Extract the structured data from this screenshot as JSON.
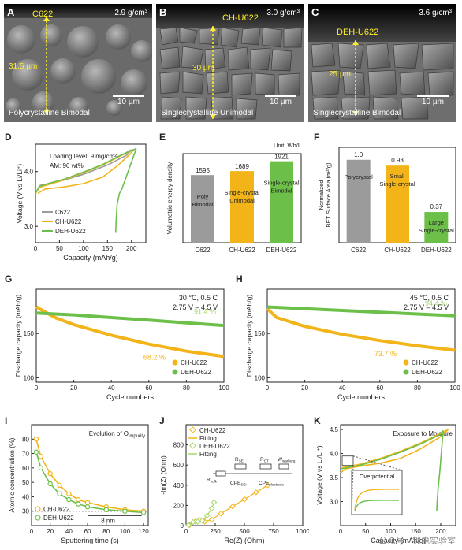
{
  "panels": {
    "A": {
      "letter": "A",
      "density": "2.9 g/cm³",
      "name": "C622",
      "thickness": "31.5 µm",
      "scale": "10 µm",
      "caption": "Polycrystalline Bimodal"
    },
    "B": {
      "letter": "B",
      "density": "3.0 g/cm³",
      "name": "CH-U622",
      "thickness": "30 µm",
      "scale": "10 µm",
      "caption": "Singlecrystalline Unimodal"
    },
    "C": {
      "letter": "C",
      "density": "3.6 g/cm³",
      "name": "DEH-U622",
      "thickness": "25 µm",
      "scale": "10 µm",
      "caption": "Singlecrystalline Bimodal"
    }
  },
  "colors": {
    "c622": "#9b9b9b",
    "ch": "#f2b419",
    "deh": "#6cc04a",
    "deh_light": "#a6d96a"
  },
  "chart_data": [
    {
      "id": "D",
      "type": "line",
      "letter": "D",
      "xlabel": "Capacity (mAh/g)",
      "ylabel": "Voltage (V vs Li/Li⁺)",
      "xlim": [
        0,
        230
      ],
      "ylim": [
        2.7,
        4.5
      ],
      "xticks": [
        0,
        50,
        100,
        150,
        200
      ],
      "yticks": [
        3.0,
        4.0
      ],
      "annotations": [
        "Loading level: 9 mg/cm²",
        "AM: 96 wt%"
      ],
      "legend": [
        "C622",
        "CH-U622",
        "DEH-U622"
      ],
      "series": [
        {
          "name": "C622",
          "charge_x": [
            0,
            8,
            30,
            60,
            100,
            140,
            180,
            200
          ],
          "charge_y": [
            3.6,
            3.72,
            3.78,
            3.85,
            3.98,
            4.12,
            4.3,
            4.4
          ],
          "discharge_x": [
            200,
            190,
            150,
            100,
            50,
            10,
            0
          ],
          "discharge_y": [
            4.4,
            4.3,
            4.12,
            3.95,
            3.82,
            3.75,
            3.6
          ]
        },
        {
          "name": "CH-U622",
          "charge_x": [
            0,
            8,
            30,
            60,
            100,
            140,
            180,
            205
          ],
          "charge_y": [
            3.6,
            3.71,
            3.77,
            3.85,
            3.98,
            4.12,
            4.3,
            4.4
          ],
          "discharge_x": [
            205,
            195,
            170,
            140,
            100,
            60,
            20,
            5
          ],
          "discharge_y": [
            4.4,
            4.3,
            4.1,
            3.9,
            3.78,
            3.72,
            3.68,
            3.6
          ]
        },
        {
          "name": "DEH-U622",
          "charge_x": [
            0,
            8,
            30,
            60,
            100,
            140,
            180,
            210
          ],
          "charge_y": [
            3.6,
            3.73,
            3.79,
            3.86,
            3.99,
            4.13,
            4.31,
            4.42
          ],
          "discharge_x": [
            210,
            180,
            175,
            170,
            168,
            167
          ],
          "discharge_y": [
            4.42,
            3.68,
            3.6,
            3.4,
            3.1,
            2.88
          ]
        }
      ]
    },
    {
      "id": "E",
      "type": "bar",
      "letter": "E",
      "ylabel": "Volumetric energy density",
      "unit": "Unit: Wh/L",
      "categories": [
        "C622",
        "CH-U622",
        "DEH-U622"
      ],
      "values": [
        1595,
        1689,
        1921
      ],
      "value_labels": [
        "1595",
        "1689",
        "1921"
      ],
      "bar_labels": [
        [
          "Poly",
          "Bimodal"
        ],
        [
          "Single-crystal",
          "Unimodal"
        ],
        [
          "Single-crystal",
          "Bimodal"
        ]
      ],
      "ylim": [
        0,
        2100
      ]
    },
    {
      "id": "F",
      "type": "bar",
      "letter": "F",
      "ylabel": "Normalized BET Surface Area (m²/g)",
      "categories": [
        "C622",
        "CH-U622",
        "DEH-U622"
      ],
      "values": [
        1.0,
        0.93,
        0.37
      ],
      "value_labels": [
        "1.0",
        "0.93",
        "0.37"
      ],
      "bar_labels": [
        [
          "Polycrystal"
        ],
        [
          "Small",
          "Single-crystal"
        ],
        [
          "Large",
          "Single-crystal"
        ]
      ],
      "ylim": [
        0,
        1.15
      ]
    },
    {
      "id": "G",
      "type": "line",
      "letter": "G",
      "condition": [
        "30 °C, 0.5 C",
        "2.75 V – 4.5 V"
      ],
      "xlabel": "Cycle numbers",
      "ylabel": "Discharge capacity (mAh/g)",
      "xlim": [
        0,
        100
      ],
      "ylim": [
        95,
        200
      ],
      "xticks": [
        0,
        20,
        40,
        60,
        80,
        100
      ],
      "yticks": [
        100,
        150
      ],
      "retention": [
        "91.4 %",
        "68.2 %"
      ],
      "legend": [
        "CH-U622",
        "DEH-U622"
      ],
      "series": [
        {
          "name": "CH-U622",
          "x": [
            0,
            10,
            20,
            40,
            60,
            80,
            100
          ],
          "y": [
            180,
            168,
            160,
            148,
            138,
            130,
            124
          ]
        },
        {
          "name": "DEH-U622",
          "x": [
            0,
            10,
            20,
            40,
            60,
            80,
            100
          ],
          "y": [
            173,
            172,
            171,
            168,
            165,
            162,
            159
          ]
        }
      ]
    },
    {
      "id": "H",
      "type": "line",
      "letter": "H",
      "condition": [
        "45 °C, 0.5 C",
        "2.75 V – 4.5 V"
      ],
      "xlabel": "Cycle numbers",
      "ylabel": "Discharge capacity (mAh/g)",
      "xlim": [
        0,
        100
      ],
      "ylim": [
        95,
        200
      ],
      "xticks": [
        0,
        20,
        40,
        60,
        80,
        100
      ],
      "yticks": [
        100,
        150
      ],
      "retention": [
        "94.4 %",
        "73.7 %"
      ],
      "legend": [
        "CH-U622",
        "DEH-U622"
      ],
      "series": [
        {
          "name": "CH-U622",
          "x": [
            0,
            5,
            20,
            40,
            60,
            80,
            100
          ],
          "y": [
            178,
            168,
            158,
            149,
            142,
            136,
            131
          ]
        },
        {
          "name": "DEH-U622",
          "x": [
            0,
            10,
            20,
            40,
            60,
            80,
            100
          ],
          "y": [
            180,
            179,
            178,
            176,
            174,
            172,
            170
          ]
        }
      ]
    },
    {
      "id": "I",
      "type": "line",
      "letter": "I",
      "title": "Evolution of O",
      "title_sub": "impurity",
      "xlabel": "Sputtering time (s)",
      "ylabel": "Atomic concentration (%)",
      "xlim": [
        0,
        125
      ],
      "ylim": [
        20,
        90
      ],
      "xticks": [
        0,
        20,
        40,
        60,
        80,
        100,
        120
      ],
      "yticks": [
        30,
        40,
        50,
        60,
        70,
        80
      ],
      "annotation": "8 nm",
      "legend": [
        "CH-U622",
        "DEH-U622"
      ],
      "series": [
        {
          "name": "CH-U622",
          "x": [
            5,
            10,
            20,
            30,
            40,
            50,
            60,
            80,
            100,
            120
          ],
          "y": [
            80,
            68,
            56,
            48,
            42,
            38,
            36,
            33,
            31,
            30
          ]
        },
        {
          "name": "DEH-U622",
          "x": [
            5,
            10,
            20,
            30,
            40,
            50,
            60,
            80,
            100,
            120
          ],
          "y": [
            71,
            60,
            49,
            42,
            38,
            35,
            33,
            31,
            30,
            29
          ]
        }
      ]
    },
    {
      "id": "J",
      "type": "scatter",
      "letter": "J",
      "xlabel": "Re(Z) (Ohm)",
      "ylabel": "-Im(Z) (Ohm)",
      "xlim": [
        0,
        1000
      ],
      "ylim": [
        0,
        1000
      ],
      "xticks": [
        0,
        250,
        500,
        750,
        1000
      ],
      "yticks": [
        0,
        200,
        400,
        600,
        800
      ],
      "legend": [
        "CH-U622",
        "Fitting",
        "DEH-U622",
        "Fitting"
      ],
      "circuit": [
        "R",
        "bulk",
        "R",
        "SEI",
        "R",
        "CT",
        "W",
        "warburg",
        "CPE",
        "SEI",
        "CPE",
        "electrode"
      ],
      "series": [
        {
          "name": "CH-U622",
          "x": [
            30,
            80,
            120,
            160,
            220,
            300,
            400,
            500,
            600,
            700
          ],
          "y": [
            5,
            40,
            55,
            40,
            60,
            120,
            190,
            260,
            330,
            400
          ]
        },
        {
          "name": "DEH-U622",
          "x": [
            20,
            60,
            100,
            140,
            180,
            220,
            240
          ],
          "y": [
            5,
            35,
            40,
            50,
            100,
            170,
            230
          ]
        }
      ]
    },
    {
      "id": "K",
      "type": "line",
      "letter": "K",
      "title": "Exposure to Moisture",
      "inset": "Overpotential",
      "xlabel": "Capacity (mAh/g)",
      "ylabel": "Voltage (V vs Li/Li⁺)",
      "xlim": [
        0,
        230
      ],
      "ylim": [
        2.5,
        4.6
      ],
      "xticks": [
        0,
        50,
        100,
        150,
        200
      ],
      "yticks": [
        3.0,
        3.5,
        4.0,
        4.5
      ],
      "series": [
        {
          "name": "CH-U622",
          "charge_x": [
            0,
            10,
            40,
            80,
            120,
            160,
            200,
            215
          ],
          "charge_y": [
            3.7,
            3.72,
            3.78,
            3.9,
            4.05,
            4.22,
            4.42,
            4.5
          ],
          "discharge_x": [
            215,
            200,
            160,
            120,
            80,
            40,
            10,
            0
          ],
          "discharge_y": [
            4.5,
            4.35,
            4.1,
            3.9,
            3.8,
            3.74,
            3.68,
            3.6
          ]
        },
        {
          "name": "DEH-U622",
          "charge_x": [
            0,
            10,
            40,
            80,
            120,
            160,
            200,
            205
          ],
          "charge_y": [
            3.68,
            3.7,
            3.76,
            3.88,
            4.03,
            4.2,
            4.4,
            4.48
          ],
          "discharge_x": [
            205,
            198,
            195,
            193,
            192
          ],
          "discharge_y": [
            4.48,
            3.6,
            3.3,
            3.0,
            2.8
          ]
        }
      ]
    }
  ],
  "watermark": "公众号 · 锂电实验室"
}
